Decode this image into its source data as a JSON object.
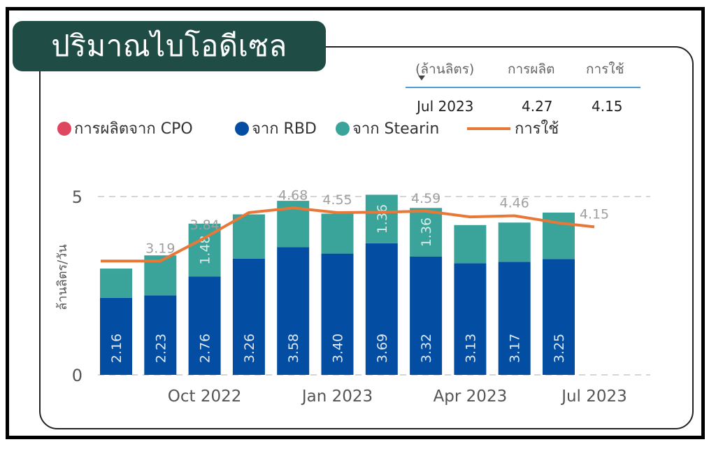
{
  "title": "ปริมาณไบโอดีเซล",
  "kpi": {
    "unit_header": "(ล้านลิตร)",
    "production_header": "การผลิต",
    "usage_header": "การใช้",
    "month": "Jul 2023",
    "production": "4.27",
    "usage": "4.15"
  },
  "legend": {
    "cpo": "การผลิตจาก CPO",
    "rbd": "จาก RBD",
    "stearin": "จาก Stearin",
    "usage": "การใช้"
  },
  "colors": {
    "cpo": "#e0455f",
    "rbd": "#034ea2",
    "stearin": "#3aa39a",
    "usage": "#e87838",
    "title_bg": "#1f4d46"
  },
  "chart_data": {
    "type": "bar",
    "stacked": true,
    "ylabel": "ล้านลิตร/วัน",
    "ylim": [
      0,
      5
    ],
    "yticks": [
      0,
      5
    ],
    "x": [
      "Aug 2022",
      "Sep 2022",
      "Oct 2022",
      "Nov 2022",
      "Dec 2022",
      "Jan 2023",
      "Feb 2023",
      "Mar 2023",
      "Apr 2023",
      "May 2023",
      "Jun 2023",
      "Jul 2023"
    ],
    "xtick_labels": [
      "Oct 2022",
      "Jan 2023",
      "Apr 2023",
      "Jul 2023"
    ],
    "series": [
      {
        "name": "การผลิตจาก CPO",
        "values": [
          0,
          0,
          0,
          0,
          0,
          0,
          0,
          0,
          0,
          0,
          0,
          null
        ]
      },
      {
        "name": "จาก RBD",
        "values": [
          2.16,
          2.23,
          2.76,
          3.26,
          3.58,
          3.4,
          3.69,
          3.32,
          3.13,
          3.17,
          3.25,
          null
        ]
      },
      {
        "name": "จาก Stearin",
        "values": [
          0.82,
          1.12,
          1.48,
          1.24,
          1.3,
          1.12,
          1.36,
          1.36,
          1.07,
          1.1,
          1.3,
          null
        ]
      },
      {
        "name": "การใช้",
        "type": "line",
        "values": [
          3.19,
          3.19,
          3.84,
          4.55,
          4.68,
          4.55,
          4.56,
          4.59,
          4.43,
          4.46,
          4.26,
          4.15
        ]
      }
    ],
    "rbd_labels": [
      "2.16",
      "2.23",
      "2.76",
      "3.26",
      "3.58",
      "3.40",
      "3.69",
      "3.32",
      "3.13",
      "3.17",
      "3.25",
      ""
    ],
    "stearin_labels": [
      "",
      "",
      "1.48",
      "",
      "",
      "",
      "1.36",
      "1.36",
      "",
      "",
      "",
      ""
    ],
    "usage_labels": [
      "",
      "3.19",
      "3.84",
      "",
      "4.68",
      "4.55",
      "",
      "4.59",
      "",
      "4.46",
      "",
      "4.15"
    ],
    "grid": true,
    "legend_position": "top-left"
  }
}
